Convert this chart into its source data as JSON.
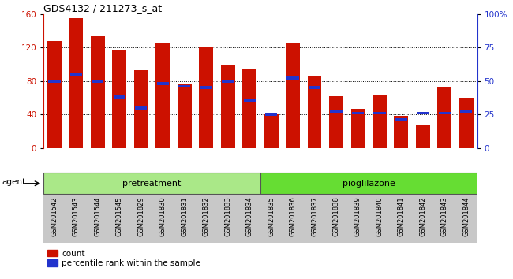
{
  "title": "GDS4132 / 211273_s_at",
  "samples": [
    "GSM201542",
    "GSM201543",
    "GSM201544",
    "GSM201545",
    "GSM201829",
    "GSM201830",
    "GSM201831",
    "GSM201832",
    "GSM201833",
    "GSM201834",
    "GSM201835",
    "GSM201836",
    "GSM201837",
    "GSM201838",
    "GSM201839",
    "GSM201840",
    "GSM201841",
    "GSM201842",
    "GSM201843",
    "GSM201844"
  ],
  "counts": [
    128,
    155,
    133,
    116,
    93,
    126,
    77,
    120,
    99,
    94,
    40,
    125,
    86,
    62,
    47,
    63,
    38,
    28,
    72,
    60
  ],
  "percentiles": [
    50,
    55,
    50,
    38,
    30,
    48,
    46,
    45,
    50,
    35,
    25,
    52,
    45,
    27,
    26,
    26,
    21,
    26,
    26,
    27
  ],
  "group1_label": "pretreatment",
  "group1_count": 10,
  "group2_label": "pioglilazone",
  "group2_count": 10,
  "agent_label": "agent",
  "ylim_left": [
    0,
    160
  ],
  "ylim_right": [
    0,
    100
  ],
  "yticks_left": [
    0,
    40,
    80,
    120,
    160
  ],
  "yticks_right": [
    0,
    25,
    50,
    75,
    100
  ],
  "bar_color": "#cc1100",
  "percentile_color": "#2233cc",
  "sample_bg_color": "#c8c8c8",
  "group1_color": "#aae888",
  "group2_color": "#66dd33",
  "legend_count_label": "count",
  "legend_pct_label": "percentile rank within the sample"
}
